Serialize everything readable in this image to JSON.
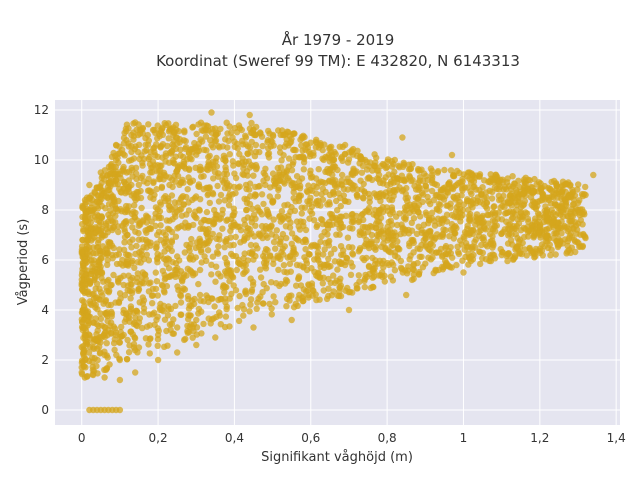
{
  "chart_data": {
    "type": "scatter",
    "title_lines": [
      "År 1979 - 2019",
      "Koordinat (Sweref 99 TM): E 432820, N 6143313"
    ],
    "xlabel": "Signifikant våghöjd (m)",
    "ylabel": "Vågperiod (s)",
    "xlim": [
      -0.07,
      1.41
    ],
    "ylim": [
      -0.6,
      12.4
    ],
    "x_ticks": [
      0,
      0.2,
      0.4,
      0.6,
      0.8,
      1,
      1.2,
      1.4
    ],
    "x_tick_labels": [
      "0",
      "0,2",
      "0,4",
      "0,6",
      "0,8",
      "1",
      "1,2",
      "1,4"
    ],
    "y_ticks": [
      0,
      2,
      4,
      6,
      8,
      10,
      12
    ],
    "y_tick_labels": [
      "0",
      "2",
      "4",
      "6",
      "8",
      "10",
      "12"
    ],
    "grid": true,
    "legend": "none",
    "marker_color": "#D4A51C",
    "plot_background": "#E5E5F0",
    "series": [
      {
        "description_points": [
          [
            0.0,
            1.5
          ],
          [
            0.0,
            1.7
          ],
          [
            0.01,
            2.0
          ],
          [
            0.01,
            3.0
          ],
          [
            0.01,
            4.0
          ],
          [
            0.01,
            5.0
          ],
          [
            0.01,
            6.0
          ],
          [
            0.02,
            7.0
          ],
          [
            0.02,
            8.0
          ],
          [
            0.02,
            9.0
          ],
          [
            0.03,
            1.4
          ],
          [
            0.03,
            2.5
          ],
          [
            0.03,
            3.5
          ],
          [
            0.04,
            4.5
          ],
          [
            0.04,
            5.5
          ],
          [
            0.04,
            6.5
          ],
          [
            0.05,
            7.5
          ],
          [
            0.05,
            8.5
          ],
          [
            0.05,
            9.5
          ],
          [
            0.06,
            1.3
          ],
          [
            0.06,
            2.2
          ],
          [
            0.07,
            3.2
          ],
          [
            0.07,
            4.2
          ],
          [
            0.07,
            5.2
          ],
          [
            0.08,
            6.2
          ],
          [
            0.08,
            7.2
          ],
          [
            0.08,
            8.2
          ],
          [
            0.09,
            9.2
          ],
          [
            0.09,
            10.0
          ],
          [
            0.09,
            10.6
          ],
          [
            0.1,
            1.2
          ],
          [
            0.1,
            2.0
          ],
          [
            0.11,
            3.0
          ],
          [
            0.11,
            4.0
          ],
          [
            0.11,
            5.0
          ],
          [
            0.12,
            6.0
          ],
          [
            0.12,
            7.0
          ],
          [
            0.12,
            8.0
          ],
          [
            0.13,
            9.0
          ],
          [
            0.13,
            10.0
          ],
          [
            0.13,
            11.0
          ],
          [
            0.14,
            11.5
          ],
          [
            0.14,
            1.5
          ],
          [
            0.15,
            2.5
          ],
          [
            0.15,
            3.5
          ],
          [
            0.16,
            4.5
          ],
          [
            0.16,
            5.5
          ],
          [
            0.17,
            6.5
          ],
          [
            0.17,
            7.5
          ],
          [
            0.18,
            8.5
          ],
          [
            0.18,
            9.5
          ],
          [
            0.19,
            10.5
          ],
          [
            0.19,
            11.2
          ],
          [
            0.2,
            2.0
          ],
          [
            0.2,
            3.0
          ],
          [
            0.21,
            4.0
          ],
          [
            0.21,
            5.0
          ],
          [
            0.22,
            6.0
          ],
          [
            0.22,
            7.0
          ],
          [
            0.23,
            8.0
          ],
          [
            0.23,
            9.0
          ],
          [
            0.24,
            10.0
          ],
          [
            0.24,
            11.0
          ],
          [
            0.25,
            2.3
          ],
          [
            0.25,
            3.3
          ],
          [
            0.26,
            4.3
          ],
          [
            0.26,
            5.3
          ],
          [
            0.27,
            6.3
          ],
          [
            0.27,
            7.3
          ],
          [
            0.28,
            8.3
          ],
          [
            0.28,
            9.3
          ],
          [
            0.29,
            10.3
          ],
          [
            0.29,
            11.3
          ],
          [
            0.3,
            2.6
          ],
          [
            0.3,
            3.6
          ],
          [
            0.31,
            4.6
          ],
          [
            0.31,
            5.6
          ],
          [
            0.32,
            6.6
          ],
          [
            0.32,
            7.6
          ],
          [
            0.33,
            8.6
          ],
          [
            0.33,
            9.6
          ],
          [
            0.34,
            10.6
          ],
          [
            0.34,
            11.9
          ],
          [
            0.35,
            2.9
          ],
          [
            0.36,
            3.9
          ],
          [
            0.37,
            4.9
          ],
          [
            0.38,
            5.9
          ],
          [
            0.39,
            6.9
          ],
          [
            0.4,
            7.9
          ],
          [
            0.41,
            8.9
          ],
          [
            0.42,
            9.9
          ],
          [
            0.43,
            10.9
          ],
          [
            0.44,
            11.8
          ],
          [
            0.45,
            3.3
          ],
          [
            0.46,
            4.3
          ],
          [
            0.47,
            5.3
          ],
          [
            0.48,
            6.3
          ],
          [
            0.49,
            7.3
          ],
          [
            0.5,
            8.3
          ],
          [
            0.51,
            9.3
          ],
          [
            0.52,
            10.3
          ],
          [
            0.53,
            11.0
          ],
          [
            0.55,
            3.6
          ],
          [
            0.57,
            4.6
          ],
          [
            0.59,
            5.6
          ],
          [
            0.61,
            6.6
          ],
          [
            0.63,
            7.6
          ],
          [
            0.65,
            8.6
          ],
          [
            0.67,
            9.6
          ],
          [
            0.69,
            10.6
          ],
          [
            0.7,
            4.0
          ],
          [
            0.72,
            5.0
          ],
          [
            0.74,
            6.0
          ],
          [
            0.76,
            7.0
          ],
          [
            0.78,
            8.0
          ],
          [
            0.8,
            9.0
          ],
          [
            0.82,
            10.0
          ],
          [
            0.84,
            10.9
          ],
          [
            0.85,
            4.6
          ],
          [
            0.87,
            5.6
          ],
          [
            0.89,
            6.6
          ],
          [
            0.91,
            7.6
          ],
          [
            0.93,
            8.6
          ],
          [
            0.95,
            9.6
          ],
          [
            0.97,
            10.2
          ],
          [
            1.0,
            5.5
          ],
          [
            1.02,
            6.5
          ],
          [
            1.04,
            7.5
          ],
          [
            1.06,
            8.5
          ],
          [
            1.08,
            9.2
          ],
          [
            1.1,
            6.2
          ],
          [
            1.12,
            7.2
          ],
          [
            1.14,
            8.2
          ],
          [
            1.16,
            8.8
          ],
          [
            1.2,
            7.0
          ],
          [
            1.22,
            7.6
          ],
          [
            1.24,
            8.2
          ],
          [
            1.26,
            8.8
          ],
          [
            1.28,
            9.0
          ],
          [
            1.3,
            8.0
          ],
          [
            1.32,
            8.6
          ],
          [
            1.34,
            9.4
          ],
          [
            0.02,
            0.0
          ],
          [
            0.03,
            0.0
          ],
          [
            0.04,
            0.0
          ],
          [
            0.05,
            0.0
          ],
          [
            0.06,
            0.0
          ],
          [
            0.07,
            0.0
          ],
          [
            0.08,
            0.0
          ],
          [
            0.09,
            0.0
          ],
          [
            0.1,
            0.0
          ]
        ]
      }
    ]
  }
}
